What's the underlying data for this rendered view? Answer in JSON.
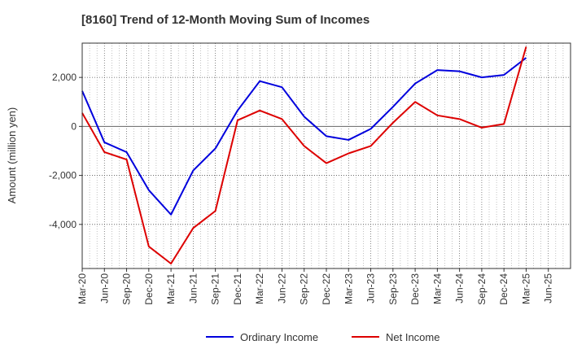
{
  "chart_data": {
    "type": "line",
    "title": "[8160]  Trend of 12-Month Moving Sum of Incomes",
    "xlabel": "",
    "ylabel": "Amount (million yen)",
    "categories": [
      "Mar-20",
      "Jun-20",
      "Sep-20",
      "Dec-20",
      "Mar-21",
      "Jun-21",
      "Sep-21",
      "Dec-21",
      "Mar-22",
      "Jun-22",
      "Sep-22",
      "Dec-22",
      "Mar-23",
      "Jun-23",
      "Sep-23",
      "Dec-23",
      "Mar-24",
      "Jun-24",
      "Sep-24",
      "Dec-24",
      "Mar-25",
      "Jun-25"
    ],
    "ylim": [
      -5800,
      3400
    ],
    "yticks": [
      -4000,
      -2000,
      0,
      2000
    ],
    "ytick_labels": [
      "-4,000",
      "-2,000",
      "0",
      "2,000"
    ],
    "grid": true,
    "legend_position": "bottom-center",
    "series": [
      {
        "name": "Ordinary Income",
        "color": "#0000dd",
        "values": [
          1450,
          -650,
          -1050,
          -2600,
          -3600,
          -1800,
          -900,
          650,
          1850,
          1600,
          400,
          -400,
          -550,
          -100,
          800,
          1750,
          2300,
          2250,
          2000,
          2100,
          2800,
          null
        ]
      },
      {
        "name": "Net Income",
        "color": "#dd0000",
        "values": [
          550,
          -1050,
          -1350,
          -4900,
          -5600,
          -4150,
          -3450,
          250,
          650,
          300,
          -800,
          -1500,
          -1100,
          -800,
          150,
          1000,
          450,
          300,
          -50,
          100,
          3250,
          null
        ]
      }
    ]
  }
}
